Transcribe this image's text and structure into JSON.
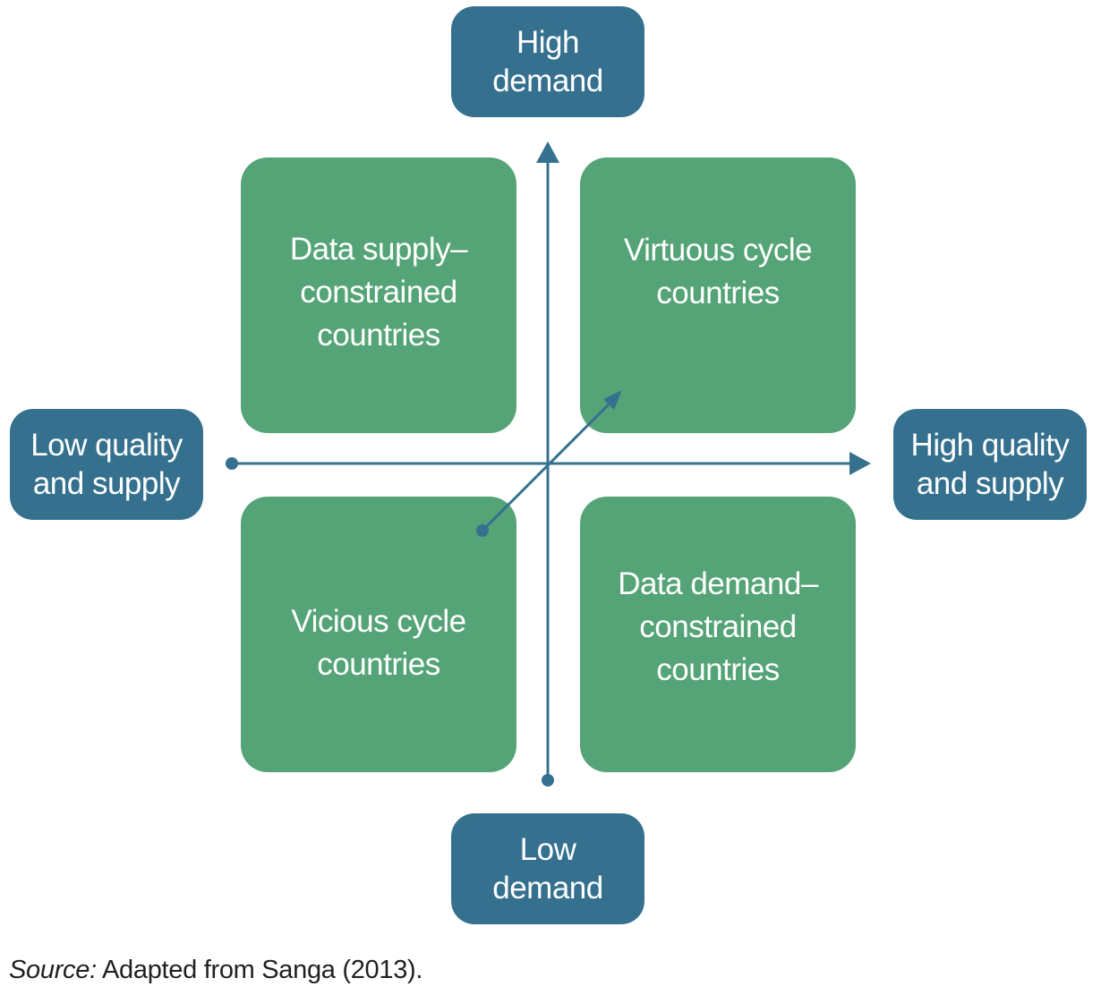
{
  "colors": {
    "quadrant_fill": "#55a477",
    "pole_fill": "#35718f",
    "axis": "#35718f",
    "text_light": "#ffffff",
    "text_dark": "#231f20"
  },
  "quadrants": {
    "top_left": {
      "lines": [
        "Data supply–",
        "constrained",
        "countries"
      ]
    },
    "top_right": {
      "lines": [
        "Virtuous cycle",
        "countries"
      ]
    },
    "bottom_left": {
      "lines": [
        "Vicious cycle",
        "countries"
      ]
    },
    "bottom_right": {
      "lines": [
        "Data demand–",
        "constrained",
        "countries"
      ]
    }
  },
  "poles": {
    "top": {
      "lines": [
        "High",
        "demand"
      ]
    },
    "bottom": {
      "lines": [
        "Low",
        "demand"
      ]
    },
    "left": {
      "lines": [
        "Low quality",
        "and supply"
      ]
    },
    "right": {
      "lines": [
        "High quality",
        "and supply"
      ]
    }
  },
  "source": {
    "label": "Source:",
    "text": " Adapted from Sanga (2013)."
  }
}
